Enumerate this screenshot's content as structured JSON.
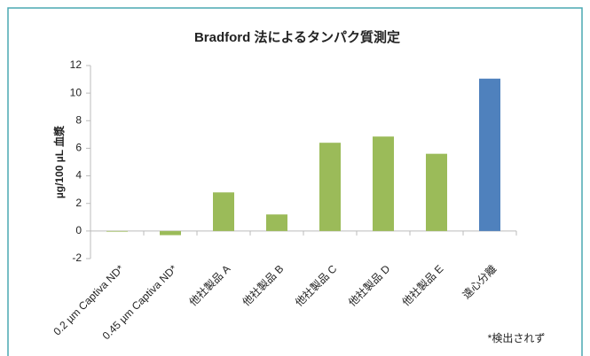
{
  "chart_data": {
    "type": "bar",
    "title": "Bradford 法によるタンパク質測定",
    "y_label": "µg/100 µL 血漿",
    "categories": [
      "0.2 µm Captiva ND*",
      "0.45 µm Captiva ND*",
      "他社製品 A",
      "他社製品 B",
      "他社製品 C",
      "他社製品 D",
      "他社製品 E",
      "遠心分離"
    ],
    "values": [
      -0.05,
      -0.3,
      2.8,
      1.2,
      6.4,
      6.85,
      5.6,
      11.05
    ],
    "colors": [
      "#9bbb59",
      "#9bbb59",
      "#9bbb59",
      "#9bbb59",
      "#9bbb59",
      "#9bbb59",
      "#9bbb59",
      "#4f81bd"
    ],
    "ylim": [
      -2,
      12
    ],
    "yticks": [
      -2,
      0,
      2,
      4,
      6,
      8,
      10,
      12
    ],
    "footnote": "*検出されず"
  }
}
